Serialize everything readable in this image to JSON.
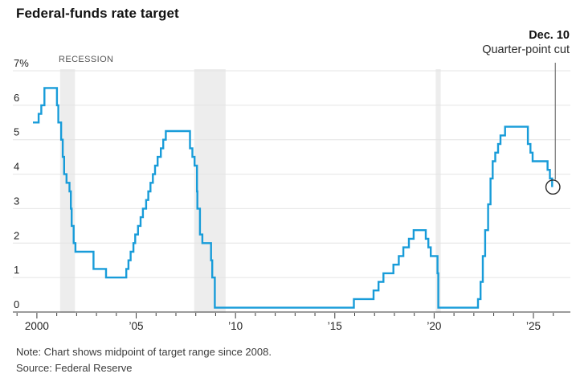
{
  "note": "Note: Chart shows midpoint of target range since 2008.",
  "source": "Source: Federal Reserve",
  "chart_data": {
    "type": "line",
    "subtype": "step",
    "title": "Federal-funds rate target",
    "unit": "%",
    "xlim": [
      1998.79,
      2026.86
    ],
    "ylim": [
      0,
      7
    ],
    "grid": "horizontal",
    "legend": "none",
    "line_color": "#189cd9",
    "recession_band_color": "#ededed",
    "axis_color": "#3a3a3a",
    "gridline_color": "#e4e4e4",
    "recession_label": "RECESSION",
    "recessions": [
      [
        2001.17,
        2001.92
      ],
      [
        2007.92,
        2009.5
      ],
      [
        2020.08,
        2020.33
      ]
    ],
    "y_ticks": [
      {
        "value": 7,
        "label": "7%"
      },
      {
        "value": 6,
        "label": "6"
      },
      {
        "value": 5,
        "label": "5"
      },
      {
        "value": 4,
        "label": "4"
      },
      {
        "value": 3,
        "label": "3"
      },
      {
        "value": 2,
        "label": "2"
      },
      {
        "value": 1,
        "label": "1"
      },
      {
        "value": 0,
        "label": "0"
      }
    ],
    "x_ticks": [
      {
        "year": 2000,
        "label": "2000"
      },
      {
        "year": 2005,
        "label": "’05"
      },
      {
        "year": 2010,
        "label": "’10"
      },
      {
        "year": 2015,
        "label": "’15"
      },
      {
        "year": 2020,
        "label": "’20"
      },
      {
        "year": 2025,
        "label": "’25"
      }
    ],
    "x_minor_tick_interval": 1,
    "annotation": {
      "date_label": "Dec. 10",
      "text": "Quarter-point cut",
      "x": 2025.94,
      "value": 3.625,
      "marker": "open-circle"
    },
    "series": [
      {
        "name": "Federal-funds rate target (midpoint of range since 2008)",
        "steps": [
          [
            1999.8,
            5.5
          ],
          [
            2000.09,
            5.75
          ],
          [
            2000.22,
            6.0
          ],
          [
            2000.38,
            6.5
          ],
          [
            2001.01,
            6.0
          ],
          [
            2001.08,
            5.5
          ],
          [
            2001.22,
            5.0
          ],
          [
            2001.3,
            4.5
          ],
          [
            2001.37,
            4.0
          ],
          [
            2001.49,
            3.75
          ],
          [
            2001.64,
            3.5
          ],
          [
            2001.71,
            3.0
          ],
          [
            2001.75,
            2.5
          ],
          [
            2001.85,
            2.0
          ],
          [
            2001.94,
            1.75
          ],
          [
            2002.85,
            1.25
          ],
          [
            2003.48,
            1.0
          ],
          [
            2004.5,
            1.25
          ],
          [
            2004.61,
            1.5
          ],
          [
            2004.72,
            1.75
          ],
          [
            2004.86,
            2.0
          ],
          [
            2004.95,
            2.25
          ],
          [
            2005.09,
            2.5
          ],
          [
            2005.22,
            2.75
          ],
          [
            2005.34,
            3.0
          ],
          [
            2005.5,
            3.25
          ],
          [
            2005.61,
            3.5
          ],
          [
            2005.72,
            3.75
          ],
          [
            2005.84,
            4.0
          ],
          [
            2005.95,
            4.25
          ],
          [
            2006.08,
            4.5
          ],
          [
            2006.24,
            4.75
          ],
          [
            2006.36,
            5.0
          ],
          [
            2006.49,
            5.25
          ],
          [
            2007.71,
            4.75
          ],
          [
            2007.83,
            4.5
          ],
          [
            2007.94,
            4.25
          ],
          [
            2008.06,
            3.5
          ],
          [
            2008.08,
            3.0
          ],
          [
            2008.21,
            2.25
          ],
          [
            2008.33,
            2.0
          ],
          [
            2008.77,
            1.5
          ],
          [
            2008.83,
            1.0
          ],
          [
            2008.96,
            0.125
          ],
          [
            2015.96,
            0.375
          ],
          [
            2016.95,
            0.625
          ],
          [
            2017.2,
            0.875
          ],
          [
            2017.45,
            1.125
          ],
          [
            2017.95,
            1.375
          ],
          [
            2018.22,
            1.625
          ],
          [
            2018.45,
            1.875
          ],
          [
            2018.73,
            2.125
          ],
          [
            2018.97,
            2.375
          ],
          [
            2019.58,
            2.125
          ],
          [
            2019.71,
            1.875
          ],
          [
            2019.83,
            1.625
          ],
          [
            2020.17,
            1.125
          ],
          [
            2020.21,
            0.125
          ],
          [
            2022.21,
            0.375
          ],
          [
            2022.34,
            0.875
          ],
          [
            2022.45,
            1.625
          ],
          [
            2022.57,
            2.375
          ],
          [
            2022.72,
            3.125
          ],
          [
            2022.84,
            3.875
          ],
          [
            2022.95,
            4.375
          ],
          [
            2023.08,
            4.625
          ],
          [
            2023.22,
            4.875
          ],
          [
            2023.34,
            5.125
          ],
          [
            2023.57,
            5.375
          ],
          [
            2024.72,
            4.875
          ],
          [
            2024.85,
            4.625
          ],
          [
            2024.96,
            4.375
          ],
          [
            2025.71,
            4.125
          ],
          [
            2025.83,
            3.875
          ],
          [
            2025.94,
            3.625
          ]
        ]
      }
    ]
  }
}
